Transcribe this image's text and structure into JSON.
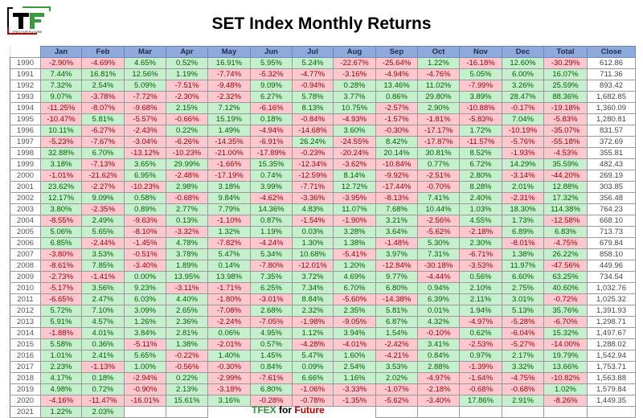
{
  "title": "SET Index Monthly Returns",
  "logo": {
    "letters": "TF",
    "tagline": "TFEX FOR FUTURE"
  },
  "footer": {
    "part1": "TFEX",
    "part2": "for",
    "part3": "Future"
  },
  "colors": {
    "positive_bg": "#c6efce",
    "positive_text": "#006100",
    "negative_bg": "#ffc7ce",
    "negative_text": "#9c0006",
    "header_bg": "#8eaadb"
  },
  "table": {
    "headers": [
      "",
      "Jan",
      "Feb",
      "Mar",
      "Apr",
      "May",
      "Jun",
      "Jul",
      "Aug",
      "Sep",
      "Oct",
      "Nov",
      "Dec",
      "Total",
      "Close"
    ],
    "rows": [
      [
        "1990",
        "-2.90%",
        "-4.69%",
        "4.65%",
        "0.52%",
        "16.91%",
        "5.95%",
        "5.24%",
        "-22.67%",
        "-25.64%",
        "1.22%",
        "-16.18%",
        "12.60%",
        "-30.29%",
        "612.86"
      ],
      [
        "1991",
        "7.44%",
        "16.81%",
        "12.56%",
        "1.19%",
        "-7.74%",
        "-5.32%",
        "-4.77%",
        "-3.16%",
        "-4.94%",
        "-4.76%",
        "5.05%",
        "6.00%",
        "16.07%",
        "711.36"
      ],
      [
        "1992",
        "7.32%",
        "2.54%",
        "5.09%",
        "-7.51%",
        "-9.48%",
        "9.09%",
        "-0.94%",
        "0.28%",
        "13.46%",
        "11.02%",
        "-7.99%",
        "3.26%",
        "25.59%",
        "893.42"
      ],
      [
        "1993",
        "9.07%",
        "-3.78%",
        "-7.72%",
        "-2.30%",
        "-2.32%",
        "6.27%",
        "5.78%",
        "3.77%",
        "0.86%",
        "29.80%",
        "3.89%",
        "28.47%",
        "88.36%",
        "1,682.85"
      ],
      [
        "1994",
        "-11.25%",
        "-8.07%",
        "-9.68%",
        "2.15%",
        "7.12%",
        "-6.16%",
        "8.13%",
        "10.75%",
        "-2.57%",
        "2.90%",
        "-10.88%",
        "-0.17%",
        "-19.18%",
        "1,360.09"
      ],
      [
        "1995",
        "-10.47%",
        "5.81%",
        "-5.57%",
        "-0.66%",
        "15.19%",
        "0.18%",
        "-0.84%",
        "-4.93%",
        "-1.57%",
        "-1.81%",
        "-5.83%",
        "7.04%",
        "-5.83%",
        "1,280.81"
      ],
      [
        "1996",
        "10.11%",
        "-6.27%",
        "-2.43%",
        "0.22%",
        "1.49%",
        "-4.94%",
        "-14.68%",
        "3.60%",
        "-0.30%",
        "-17.17%",
        "1.72%",
        "-10.19%",
        "-35.07%",
        "831.57"
      ],
      [
        "1997",
        "-5.23%",
        "-7.67%",
        "-3.04%",
        "-6.26%",
        "-14.35%",
        "-6.91%",
        "26.24%",
        "-24.55%",
        "8.42%",
        "-17.87%",
        "-11.57%",
        "-5.76%",
        "-55.18%",
        "372.69"
      ],
      [
        "1998",
        "32.88%",
        "6.70%",
        "-13.12%",
        "-10.23%",
        "-21.00%",
        "-17.89%",
        "-0.23%",
        "-20.24%",
        "20.14%",
        "30.81%",
        "8.52%",
        "-1.93%",
        "-4.53%",
        "355.81"
      ],
      [
        "1999",
        "3.18%",
        "-7.13%",
        "3.65%",
        "29.99%",
        "-1.66%",
        "15.35%",
        "-12.34%",
        "-3.62%",
        "-10.84%",
        "0.77%",
        "6.72%",
        "14.29%",
        "35.59%",
        "482.43"
      ],
      [
        "2000",
        "-1.01%",
        "-21.62%",
        "6.95%",
        "-2.48%",
        "-17.19%",
        "0.74%",
        "-12.59%",
        "8.14%",
        "-9.92%",
        "-2.51%",
        "2.80%",
        "-3.14%",
        "-44.20%",
        "269.19"
      ],
      [
        "2001",
        "23.62%",
        "-2.27%",
        "-10.23%",
        "2.98%",
        "3.18%",
        "3.99%",
        "-7.71%",
        "12.72%",
        "-17.44%",
        "-0.70%",
        "8.28%",
        "2.01%",
        "12.88%",
        "303.85"
      ],
      [
        "2002",
        "12.17%",
        "9.09%",
        "0.58%",
        "-0.68%",
        "9.84%",
        "-4.62%",
        "-3.36%",
        "-3.95%",
        "-8.13%",
        "7.41%",
        "2.40%",
        "-2.31%",
        "17.32%",
        "356.48"
      ],
      [
        "2003",
        "3.80%",
        "-2.35%",
        "0.89%",
        "2.77%",
        "7.79%",
        "14.36%",
        "4.83%",
        "11.07%",
        "7.68%",
        "10.44%",
        "1.03%",
        "18.30%",
        "114.38%",
        "764.23"
      ],
      [
        "2004",
        "-8.55%",
        "2.49%",
        "-9.63%",
        "0.13%",
        "-1.10%",
        "0.87%",
        "-1.54%",
        "-1.90%",
        "3.21%",
        "-2.56%",
        "4.55%",
        "1.73%",
        "-12.58%",
        "668.10"
      ],
      [
        "2005",
        "5.06%",
        "5.65%",
        "-8.10%",
        "-3.32%",
        "1.32%",
        "1.19%",
        "0.03%",
        "3.28%",
        "3.64%",
        "-5.62%",
        "-2.18%",
        "6.89%",
        "6.83%",
        "713.73"
      ],
      [
        "2006",
        "6.85%",
        "-2.44%",
        "-1.45%",
        "4.78%",
        "-7.82%",
        "-4.24%",
        "1.30%",
        "1.38%",
        "-1.48%",
        "5.30%",
        "2.30%",
        "-8.01%",
        "-4.75%",
        "679.84"
      ],
      [
        "2007",
        "-3.80%",
        "3.53%",
        "-0.51%",
        "3.78%",
        "5.47%",
        "5.34%",
        "10.68%",
        "-5.41%",
        "3.97%",
        "7.31%",
        "-6.71%",
        "1.38%",
        "26.22%",
        "858.10"
      ],
      [
        "2008",
        "-8.61%",
        "7.85%",
        "-3.40%",
        "1.89%",
        "0.14%",
        "-7.80%",
        "-12.01%",
        "1.20%",
        "-12.84%",
        "-30.18%",
        "-3.53%",
        "11.97%",
        "-47.56%",
        "449.96"
      ],
      [
        "2009",
        "-2.73%",
        "-1.41%",
        "0.00%",
        "13.95%",
        "13.98%",
        "7.35%",
        "3.72%",
        "4.69%",
        "9.77%",
        "-4.44%",
        "0.56%",
        "6.60%",
        "63.25%",
        "734.54"
      ],
      [
        "2010",
        "-5.17%",
        "3.56%",
        "9.23%",
        "-3.11%",
        "-1.71%",
        "6.25%",
        "7.34%",
        "6.70%",
        "6.80%",
        "0.94%",
        "2.10%",
        "2.75%",
        "40.60%",
        "1,032.76"
      ],
      [
        "2011",
        "-6.65%",
        "2.47%",
        "6.03%",
        "4.40%",
        "-1.80%",
        "-3.01%",
        "8.84%",
        "-5.60%",
        "-14.38%",
        "6.39%",
        "2.11%",
        "3.01%",
        "-0.72%",
        "1,025.32"
      ],
      [
        "2012",
        "5.72%",
        "7.10%",
        "3.09%",
        "2.65%",
        "-7.08%",
        "2.68%",
        "2.32%",
        "2.35%",
        "5.81%",
        "0.01%",
        "1.94%",
        "5.13%",
        "35.76%",
        "1,391.93"
      ],
      [
        "2013",
        "5.91%",
        "4.57%",
        "1.26%",
        "2.36%",
        "-2.24%",
        "-7.05%",
        "-1.98%",
        "-9.05%",
        "6.87%",
        "4.32%",
        "-4.97%",
        "-5.28%",
        "-6.70%",
        "1,298.71"
      ],
      [
        "2014",
        "-1.88%",
        "4.01%",
        "3.84%",
        "2.81%",
        "0.06%",
        "4.95%",
        "1.12%",
        "3.94%",
        "1.54%",
        "-0.10%",
        "0.62%",
        "-6.04%",
        "15.32%",
        "1,497.67"
      ],
      [
        "2015",
        "5.58%",
        "0.36%",
        "-5.11%",
        "1.38%",
        "-2.01%",
        "0.57%",
        "-4.28%",
        "-4.01%",
        "-2.42%",
        "3.41%",
        "-2.53%",
        "-5.27%",
        "-14.00%",
        "1,288.02"
      ],
      [
        "2016",
        "1.01%",
        "2.41%",
        "5.65%",
        "-0.22%",
        "1.40%",
        "1.45%",
        "5.47%",
        "1.60%",
        "-4.21%",
        "0.84%",
        "0.97%",
        "2.17%",
        "19.79%",
        "1,542.94"
      ],
      [
        "2017",
        "2.23%",
        "-1.13%",
        "1.00%",
        "-0.56%",
        "-0.30%",
        "0.84%",
        "0.09%",
        "2.54%",
        "3.53%",
        "2.88%",
        "-1.39%",
        "3.32%",
        "13.66%",
        "1,753.71"
      ],
      [
        "2018",
        "4.17%",
        "0.18%",
        "-2.94%",
        "0.22%",
        "-2.99%",
        "-7.61%",
        "6.66%",
        "1.16%",
        "2.02%",
        "-4.97%",
        "-1.64%",
        "-4.75%",
        "-10.82%",
        "1,563.88"
      ],
      [
        "2019",
        "4.98%",
        "0.72%",
        "-0.90%",
        "2.13%",
        "-3.18%",
        "6.80%",
        "-1.06%",
        "-3.33%",
        "-1.07%",
        "-2.18%",
        "-0.68%",
        "-0.68%",
        "1.02%",
        "1,579.84"
      ],
      [
        "2020",
        "-4.16%",
        "-11.47%",
        "-16.01%",
        "15.61%",
        "3.16%",
        "-0.28%",
        "-0.78%",
        "-1.35%",
        "-5.62%",
        "-3.40%",
        "17.86%",
        "2.91%",
        "-8.26%",
        "1,449.35"
      ],
      [
        "2021",
        "1.22%",
        "2.03%",
        "",
        "",
        "",
        "",
        "",
        "",
        "",
        "",
        "",
        "",
        "",
        ""
      ]
    ]
  }
}
